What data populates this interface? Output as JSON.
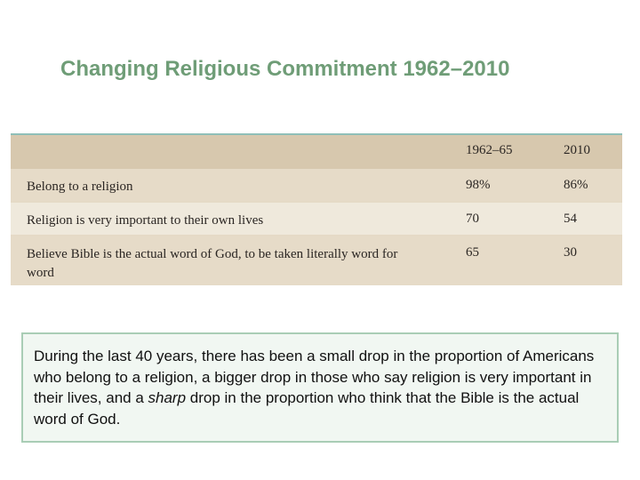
{
  "title": "Changing Religious Commitment 1962–2010",
  "table": {
    "columns": [
      "1962–65",
      "2010"
    ],
    "rows": [
      {
        "label": "Belong to a religion",
        "values": [
          "98%",
          "86%"
        ]
      },
      {
        "label": "Religion is very important to their own lives",
        "values": [
          "70",
          "54"
        ]
      },
      {
        "label": "Believe Bible is the actual word of God, to be taken literally word for word",
        "values": [
          "65",
          "30"
        ]
      }
    ]
  },
  "caption": {
    "before": "During the last 40 years, there has been a small drop in the proportion of Americans who belong to a religion, a bigger drop in those who say religion is very important in their lives, and a ",
    "emphasis": "sharp",
    "after": " drop in the proportion who think that the Bible is the actual word of God."
  }
}
